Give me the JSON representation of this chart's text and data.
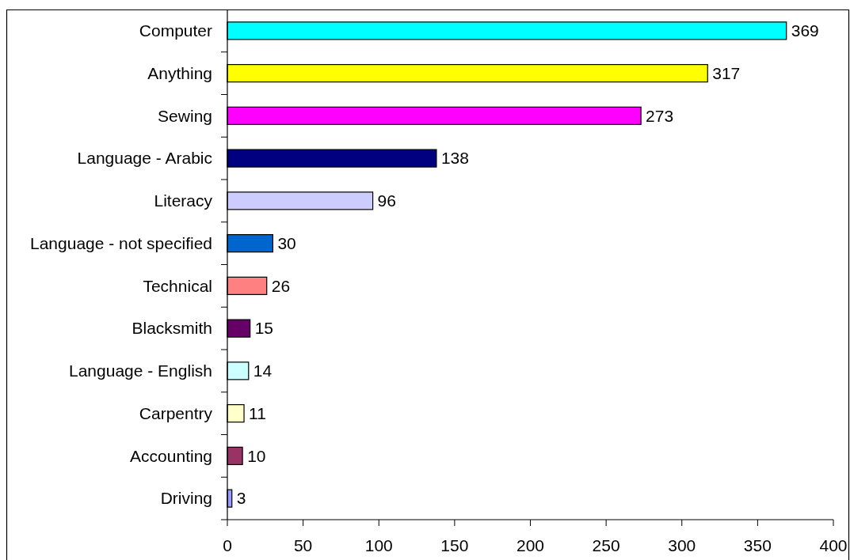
{
  "chart_data": {
    "type": "bar",
    "orientation": "horizontal",
    "categories": [
      "Computer",
      "Anything",
      "Sewing",
      "Language - Arabic",
      "Literacy",
      "Language - not specified",
      "Technical",
      "Blacksmith",
      "Language - English",
      "Carpentry",
      "Accounting",
      "Driving"
    ],
    "values": [
      369,
      317,
      273,
      138,
      96,
      30,
      26,
      15,
      14,
      11,
      10,
      3
    ],
    "colors": [
      "#00ffff",
      "#ffff00",
      "#ff00ff",
      "#000080",
      "#ccccff",
      "#0066cc",
      "#ff8080",
      "#660066",
      "#ccffff",
      "#ffffcc",
      "#993366",
      "#9999ff"
    ],
    "xlim": [
      0,
      400
    ],
    "xticks": [
      0,
      50,
      100,
      150,
      200,
      250,
      300,
      350,
      400
    ],
    "data_labels": true,
    "grid": false
  }
}
